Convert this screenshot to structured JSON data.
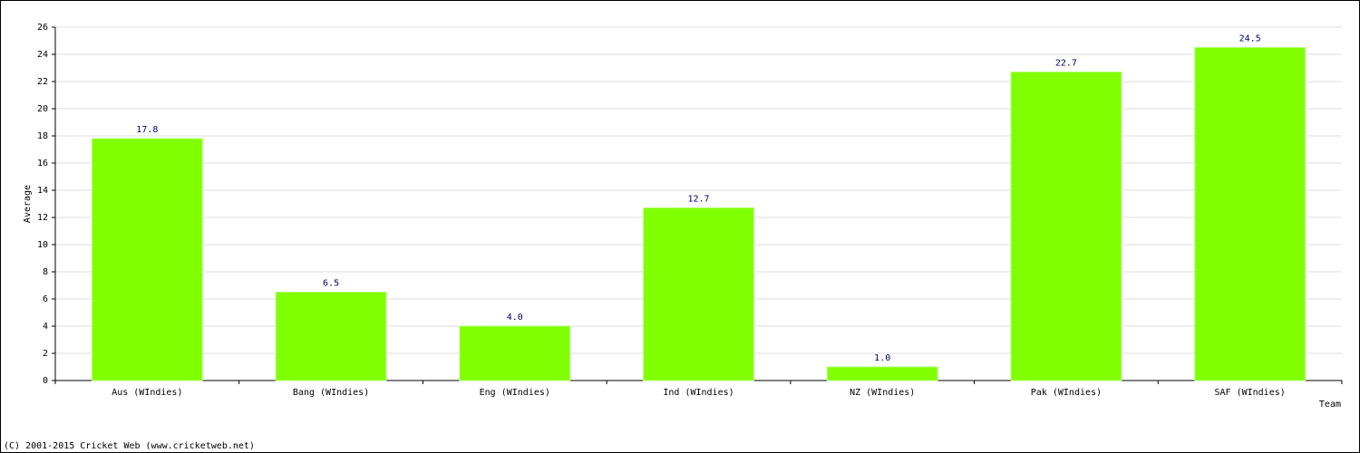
{
  "chart_data": {
    "type": "bar",
    "categories": [
      "Aus (WIndies)",
      "Bang (WIndies)",
      "Eng (WIndies)",
      "Ind (WIndies)",
      "NZ (WIndies)",
      "Pak (WIndies)",
      "SAF (WIndies)"
    ],
    "values": [
      17.8,
      6.5,
      4,
      12.7,
      1,
      22.7,
      24.5
    ],
    "value_labels": [
      "17.8",
      "6.5",
      "4.0",
      "12.7",
      "1.0",
      "22.7",
      "24.5"
    ],
    "color": "#7fff00",
    "ylim": [
      0,
      26
    ],
    "yticks": [
      0,
      2,
      4,
      6,
      8,
      10,
      12,
      14,
      16,
      18,
      20,
      22,
      24,
      26
    ],
    "grid": true,
    "y_label": "Average",
    "x_label": "Team",
    "footer": "(C) 2001-2015 Cricket Web (www.cricketweb.net)"
  }
}
